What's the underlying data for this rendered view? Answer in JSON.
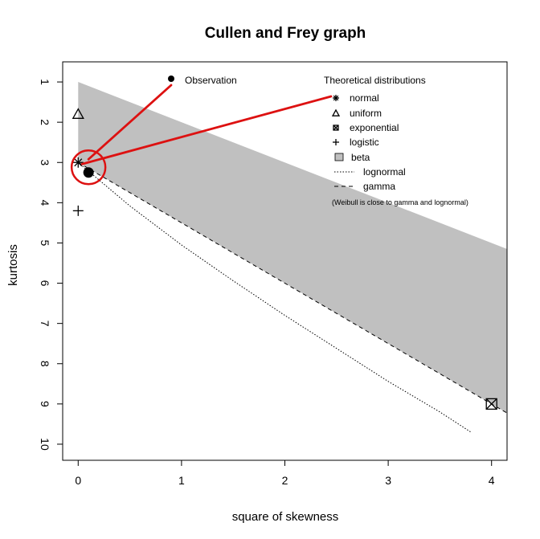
{
  "chart_data": {
    "type": "scatter",
    "title": "Cullen and Frey graph",
    "xlabel": "square of skewness",
    "ylabel": "kurtosis",
    "xlim": [
      -0.15,
      4.15
    ],
    "ylim": [
      10.4,
      0.5
    ],
    "y_axis_inverted": true,
    "x_ticks": [
      0,
      1,
      2,
      3,
      4
    ],
    "y_ticks": [
      1,
      2,
      3,
      4,
      5,
      6,
      7,
      8,
      9,
      10
    ],
    "x_tick_labels": [
      "0",
      "1",
      "2",
      "3",
      "4"
    ],
    "y_tick_labels": [
      "1",
      "2",
      "3",
      "4",
      "5",
      "6",
      "7",
      "8",
      "9",
      "10"
    ],
    "grid": false,
    "legend_placement": "top-right",
    "observation": {
      "name": "Observation",
      "x": 0.1,
      "y": 3.25
    },
    "theoretical_points": [
      {
        "name": "normal",
        "symbol": "asterisk",
        "x": 0,
        "y": 3
      },
      {
        "name": "uniform",
        "symbol": "triangle",
        "x": 0,
        "y": 1.8
      },
      {
        "name": "exponential",
        "symbol": "crossed-square",
        "x": 4,
        "y": 9
      },
      {
        "name": "logistic",
        "symbol": "plus",
        "x": 0,
        "y": 4.2
      }
    ],
    "beta_region": {
      "name": "beta",
      "upper": [
        [
          0,
          1
        ],
        [
          4.15,
          5.15
        ]
      ],
      "lower": [
        [
          0,
          3
        ],
        [
          0.5,
          3.75
        ],
        [
          1,
          4.5
        ],
        [
          2,
          6
        ],
        [
          3,
          7.5
        ],
        [
          4,
          9
        ],
        [
          4.15,
          9.225
        ]
      ]
    },
    "lognormal_curve": {
      "name": "lognormal",
      "points": [
        [
          0,
          3
        ],
        [
          0.5,
          4.08
        ],
        [
          1,
          5.05
        ],
        [
          1.5,
          5.94
        ],
        [
          2,
          6.8
        ],
        [
          2.5,
          7.62
        ],
        [
          3,
          8.44
        ],
        [
          3.5,
          9.2
        ],
        [
          3.8,
          9.7
        ]
      ]
    },
    "gamma_line": {
      "name": "gamma",
      "points": [
        [
          0,
          3
        ],
        [
          4.15,
          9.225
        ]
      ]
    },
    "legend_title": "Theoretical distributions",
    "legend_items": [
      "normal",
      "uniform",
      "exponential",
      "logistic",
      "beta",
      "lognormal",
      "gamma"
    ],
    "legend_note": "(Weibull is close to gamma and lognormal)",
    "annotations": {
      "color": "#dd1111",
      "circle_center": {
        "x": 0.1,
        "y": 3.12
      },
      "arrows_from": {
        "x": 0.1,
        "y": 3.12
      },
      "arrow_targets": [
        "observation-legend",
        "normal-legend"
      ]
    }
  },
  "colors": {
    "beta_fill": "#c0c0c0",
    "annotation": "#dd1111",
    "ink": "#000000"
  }
}
